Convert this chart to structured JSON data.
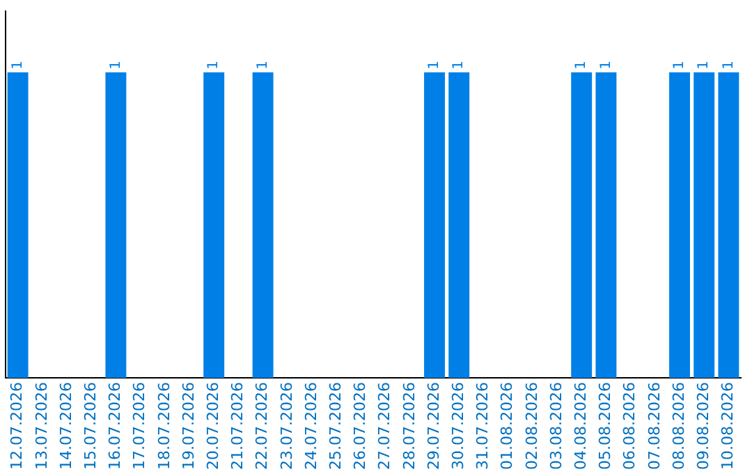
{
  "chart_data": {
    "type": "bar",
    "categories": [
      "12.07.2026",
      "13.07.2026",
      "14.07.2026",
      "15.07.2026",
      "16.07.2026",
      "17.07.2026",
      "18.07.2026",
      "19.07.2026",
      "20.07.2026",
      "21.07.2026",
      "22.07.2026",
      "23.07.2026",
      "24.07.2026",
      "25.07.2026",
      "26.07.2026",
      "27.07.2026",
      "28.07.2026",
      "29.07.2026",
      "30.07.2026",
      "31.07.2026",
      "01.08.2026",
      "02.08.2026",
      "03.08.2026",
      "04.08.2026",
      "05.08.2026",
      "06.08.2026",
      "07.08.2026",
      "08.08.2026",
      "09.08.2026",
      "10.08.2026"
    ],
    "values": [
      1,
      0,
      0,
      0,
      1,
      0,
      0,
      0,
      1,
      0,
      1,
      0,
      0,
      0,
      0,
      0,
      0,
      1,
      1,
      0,
      0,
      0,
      0,
      1,
      1,
      0,
      0,
      1,
      1,
      1
    ],
    "value_labels": [
      "1",
      null,
      null,
      null,
      "1",
      null,
      null,
      null,
      "1",
      null,
      "1",
      null,
      null,
      null,
      null,
      null,
      null,
      "1",
      "1",
      null,
      null,
      null,
      null,
      "1",
      "1",
      null,
      null,
      "1",
      "1",
      "1"
    ],
    "color": "#0080e6",
    "grid": false,
    "legend": false,
    "tick_labels": "x"
  }
}
